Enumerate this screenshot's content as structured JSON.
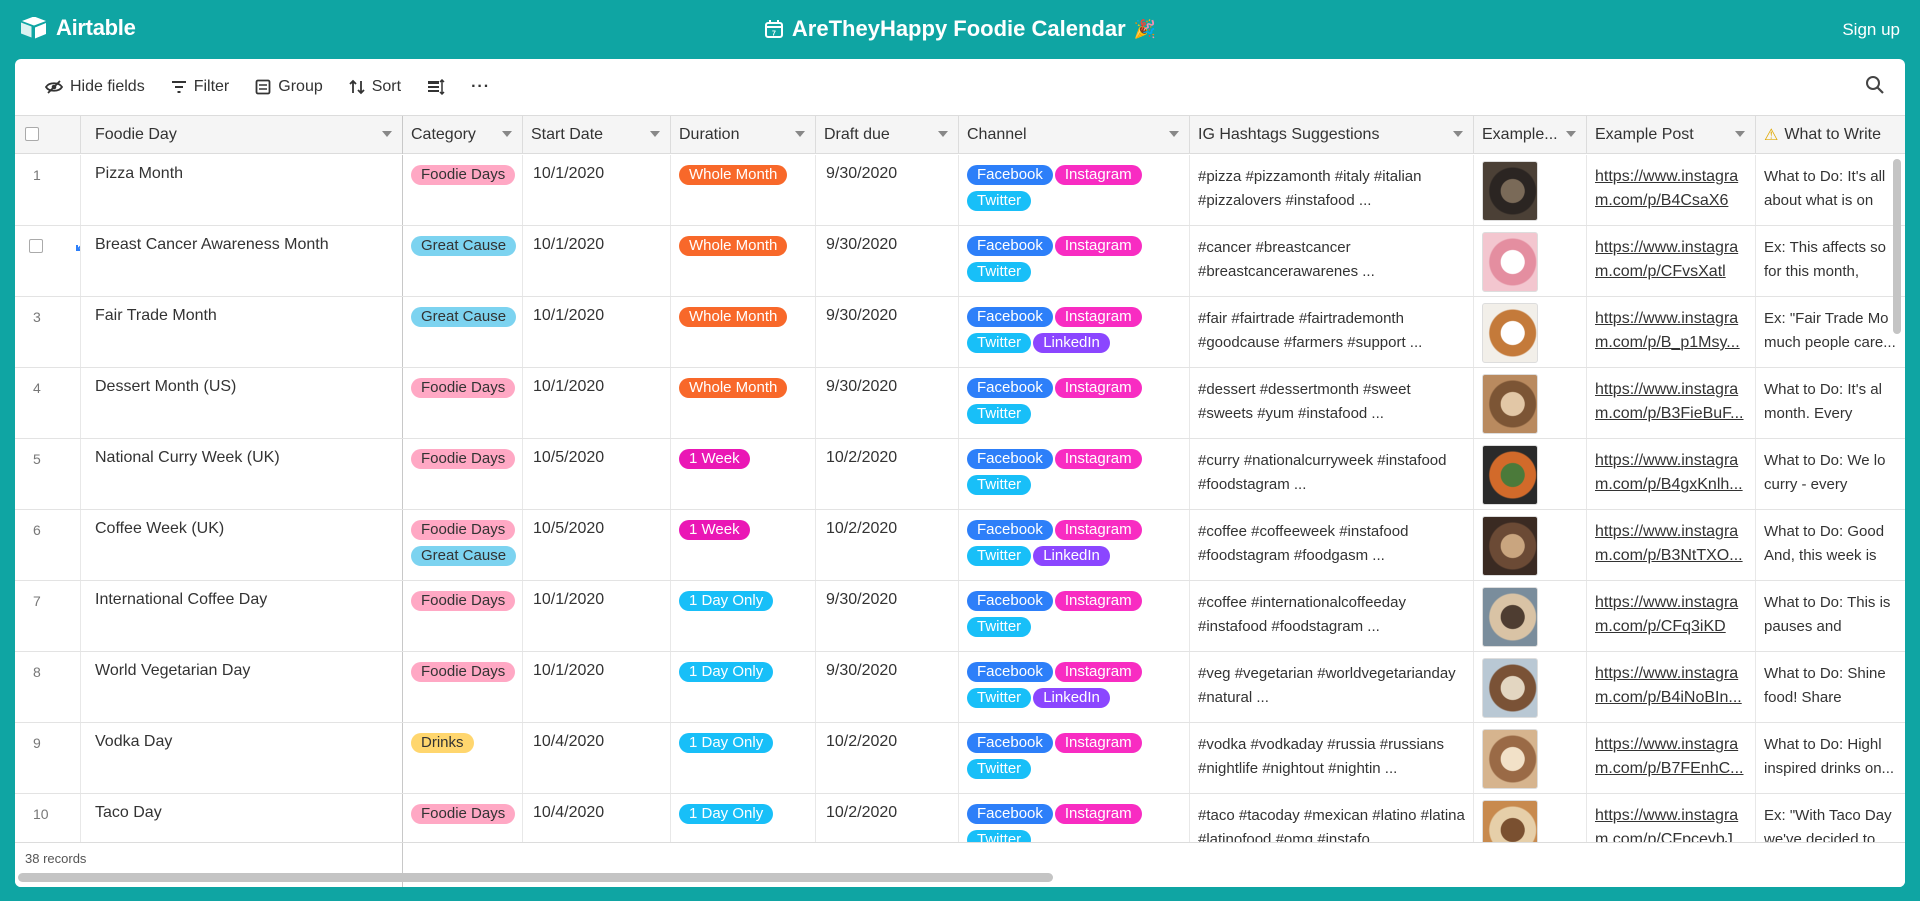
{
  "app": {
    "brand": "Airtable",
    "title": "AreTheyHappy Foodie Calendar",
    "title_emoji": "🎉",
    "signup": "Sign up"
  },
  "toolbar": {
    "hide_fields": "Hide fields",
    "filter": "Filter",
    "group": "Group",
    "sort": "Sort",
    "more": "···"
  },
  "columns": [
    "Foodie Day",
    "Category",
    "Start Date",
    "Duration",
    "Draft due",
    "Channel",
    "IG Hashtags Suggestions",
    "Example...",
    "Example Post",
    "What to Write"
  ],
  "colors": {
    "Foodie Days": "#ffa8c4",
    "Great Cause": "#7cd3f0",
    "Drinks": "#ffd66e",
    "Whole Month": "#f8682a",
    "1 Week": "#ea17b5",
    "1 Day Only": "#18bff8",
    "Facebook": "#2d7ff9",
    "Instagram": "#f82cc2",
    "Twitter": "#18bff8",
    "LinkedIn": "#8b46ff"
  },
  "rows": [
    {
      "num": "1",
      "name": "Pizza Month",
      "category": [
        "Foodie Days"
      ],
      "start": "10/1/2020",
      "duration": "Whole Month",
      "draft": "9/30/2020",
      "channels": [
        "Facebook",
        "Instagram",
        "Twitter"
      ],
      "hashtags": "#pizza #pizzamonth #italy #italian #pizzalovers #instafood ...",
      "post": "https://www.instagram.com/p/B4CsaX6F...",
      "write": "What to Do: It's all about what is on your menu, h..."
    },
    {
      "num": "",
      "name": "Breast Cancer Awareness Month",
      "category": [
        "Great Cause"
      ],
      "start": "10/1/2020",
      "duration": "Whole Month",
      "draft": "9/30/2020",
      "channels": [
        "Facebook",
        "Instagram",
        "Twitter"
      ],
      "hashtags": "#cancer #breastcancer #breastcancerawarenes ...",
      "post": "https://www.instagram.com/p/CFvsXatlP...",
      "write": "Ex: This affects so for this month, enc..."
    },
    {
      "num": "3",
      "name": "Fair Trade Month",
      "category": [
        "Great Cause"
      ],
      "start": "10/1/2020",
      "duration": "Whole Month",
      "draft": "9/30/2020",
      "channels": [
        "Facebook",
        "Instagram",
        "Twitter",
        "LinkedIn"
      ],
      "hashtags": "#fair #fairtrade #fairtrademonth #goodcause #farmers #support ...",
      "post": "https://www.instagram.com/p/B_p1Msy...",
      "write": "Ex: \"Fair Trade Mo much people care..."
    },
    {
      "num": "4",
      "name": "Dessert Month (US)",
      "category": [
        "Foodie Days"
      ],
      "start": "10/1/2020",
      "duration": "Whole Month",
      "draft": "9/30/2020",
      "channels": [
        "Facebook",
        "Instagram",
        "Twitter"
      ],
      "hashtags": "#dessert #dessertmonth #sweet #sweets #yum #instafood ...",
      "post": "https://www.instagram.com/p/B3FieBuF...",
      "write": "What to Do: It's al month. Every week..."
    },
    {
      "num": "5",
      "name": "National Curry Week (UK)",
      "category": [
        "Foodie Days"
      ],
      "start": "10/5/2020",
      "duration": "1 Week",
      "draft": "10/2/2020",
      "channels": [
        "Facebook",
        "Instagram",
        "Twitter"
      ],
      "hashtags": "#curry #nationalcurryweek #instafood #foodstagram ...",
      "post": "https://www.instagram.com/p/B4gxKnlh...",
      "write": "What to Do: We lo curry - every beau..."
    },
    {
      "num": "6",
      "name": "Coffee Week (UK)",
      "category": [
        "Foodie Days",
        "Great Cause"
      ],
      "start": "10/5/2020",
      "duration": "1 Week",
      "draft": "10/2/2020",
      "channels": [
        "Facebook",
        "Instagram",
        "Twitter",
        "LinkedIn"
      ],
      "hashtags": "#coffee #coffeeweek #instafood #foodstagram #foodgasm ...",
      "post": "https://www.instagram.com/p/B3NtTXO...",
      "write": "What to Do: Good And, this week is a..."
    },
    {
      "num": "7",
      "name": "International Coffee Day",
      "category": [
        "Foodie Days"
      ],
      "start": "10/1/2020",
      "duration": "1 Day Only",
      "draft": "9/30/2020",
      "channels": [
        "Facebook",
        "Instagram",
        "Twitter"
      ],
      "hashtags": "#coffee #internationalcoffeeday #instafood #foodstagram ...",
      "post": "https://www.instagram.com/p/CFq3iKDF...",
      "write": "What to Do: This is pauses and ackno..."
    },
    {
      "num": "8",
      "name": "World Vegetarian Day",
      "category": [
        "Foodie Days"
      ],
      "start": "10/1/2020",
      "duration": "1 Day Only",
      "draft": "9/30/2020",
      "channels": [
        "Facebook",
        "Instagram",
        "Twitter",
        "LinkedIn"
      ],
      "hashtags": "#veg #vegetarian #worldvegetarianday #natural ...",
      "post": "https://www.instagram.com/p/B4iNoBIn...",
      "write": "What to Do: Shine food! Share what's..."
    },
    {
      "num": "9",
      "name": "Vodka Day",
      "category": [
        "Drinks"
      ],
      "start": "10/4/2020",
      "duration": "1 Day Only",
      "draft": "10/2/2020",
      "channels": [
        "Facebook",
        "Instagram",
        "Twitter"
      ],
      "hashtags": "#vodka #vodkaday #russia #russians #nightlife #nightout #nightin ...",
      "post": "https://www.instagram.com/p/B7FEnhC...",
      "write": "What to Do: Highl inspired drinks on..."
    },
    {
      "num": "10",
      "name": "Taco Day",
      "category": [
        "Foodie Days"
      ],
      "start": "10/4/2020",
      "duration": "1 Day Only",
      "draft": "10/2/2020",
      "channels": [
        "Facebook",
        "Instagram",
        "Twitter"
      ],
      "hashtags": "#taco #tacoday #mexican #latino #latina #latinofood #omg #instafo...",
      "post": "https://www.instagram.com/p/CFpceybJ...",
      "write": "Ex: \"With Taco Day we've decided to c..."
    }
  ],
  "footer": {
    "record_count": "38 records"
  }
}
